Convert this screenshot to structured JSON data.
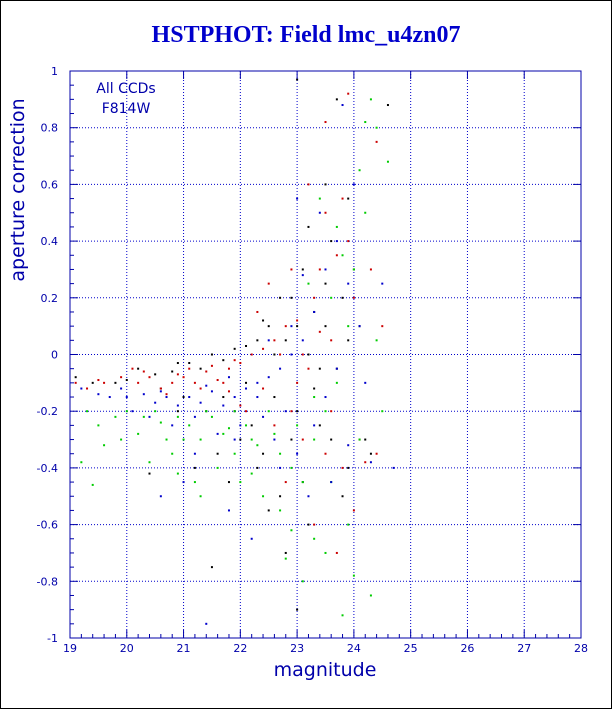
{
  "chart_data": {
    "type": "scatter",
    "title": "HSTPHOT: Field lmc_u4zn07",
    "xlabel": "magnitude",
    "ylabel": "aperture correction",
    "xlim": [
      19,
      28
    ],
    "ylim": [
      -1,
      1
    ],
    "x_ticks": [
      "19",
      "20",
      "21",
      "22",
      "23",
      "24",
      "25",
      "26",
      "27",
      "28"
    ],
    "y_ticks": [
      "-1",
      "-0.8",
      "-0.6",
      "-0.4",
      "-0.2",
      "0",
      "0.2",
      "0.4",
      "0.6",
      "0.8",
      "1"
    ],
    "grid": true,
    "annotations": [
      "All CCDs",
      "F814W"
    ],
    "colors": {
      "axis": "#0000aa",
      "grid": "#0000cc",
      "title": "#0000cc",
      "series": [
        "#000000",
        "#cc0000",
        "#00cc00",
        "#0000cc"
      ]
    },
    "series": [
      {
        "color": "#000000",
        "points": [
          [
            19.1,
            -0.08
          ],
          [
            19.4,
            -0.1
          ],
          [
            19.8,
            -0.1
          ],
          [
            20.2,
            -0.05
          ],
          [
            20.5,
            -0.07
          ],
          [
            20.8,
            -0.06
          ],
          [
            20.9,
            -0.03
          ],
          [
            21.1,
            -0.03
          ],
          [
            21.3,
            -0.05
          ],
          [
            21.5,
            0.0
          ],
          [
            21.7,
            -0.02
          ],
          [
            21.9,
            0.02
          ],
          [
            22.1,
            0.03
          ],
          [
            22.3,
            0.05
          ],
          [
            22.5,
            0.1
          ],
          [
            22.6,
            0.0
          ],
          [
            22.8,
            0.05
          ],
          [
            22.9,
            0.2
          ],
          [
            23.0,
            0.1
          ],
          [
            23.1,
            0.3
          ],
          [
            23.2,
            0.0
          ],
          [
            23.3,
            0.15
          ],
          [
            23.4,
            -0.05
          ],
          [
            23.5,
            0.25
          ],
          [
            23.6,
            0.4
          ],
          [
            23.7,
            0.9
          ],
          [
            23.8,
            0.2
          ],
          [
            23.9,
            0.05
          ],
          [
            24.0,
            0.3
          ],
          [
            23.0,
            0.97
          ],
          [
            23.5,
            0.6
          ],
          [
            22.9,
            -0.3
          ],
          [
            23.1,
            -0.45
          ],
          [
            22.7,
            -0.5
          ],
          [
            23.2,
            -0.6
          ],
          [
            22.4,
            -0.35
          ],
          [
            21.8,
            -0.45
          ],
          [
            21.5,
            -0.75
          ],
          [
            23.0,
            -0.9
          ],
          [
            22.8,
            -0.7
          ],
          [
            23.4,
            -0.25
          ],
          [
            23.6,
            -0.3
          ],
          [
            23.9,
            -0.4
          ],
          [
            24.2,
            -0.3
          ],
          [
            24.6,
            0.88
          ],
          [
            22.2,
            -0.25
          ],
          [
            21.0,
            -0.15
          ],
          [
            20.6,
            -0.12
          ],
          [
            20.0,
            -0.09
          ],
          [
            21.2,
            -0.4
          ],
          [
            22.6,
            -0.15
          ],
          [
            23.3,
            -0.12
          ],
          [
            22.0,
            -0.3
          ],
          [
            21.9,
            -0.2
          ],
          [
            22.5,
            -0.55
          ],
          [
            23.7,
            -0.05
          ],
          [
            24.1,
            0.1
          ],
          [
            22.1,
            -0.1
          ],
          [
            20.4,
            -0.42
          ],
          [
            21.4,
            -0.2
          ],
          [
            23.8,
            -0.5
          ],
          [
            22.3,
            -0.4
          ],
          [
            21.6,
            -0.35
          ],
          [
            23.5,
            0.1
          ],
          [
            23.2,
            0.45
          ],
          [
            24.3,
            -0.35
          ],
          [
            22.7,
            0.2
          ],
          [
            22.4,
            0.12
          ],
          [
            20.9,
            -0.2
          ],
          [
            21.7,
            -0.15
          ],
          [
            23.9,
            0.55
          ],
          [
            23.0,
            -0.2
          ]
        ]
      },
      {
        "color": "#cc0000",
        "points": [
          [
            19.1,
            -0.1
          ],
          [
            19.3,
            -0.12
          ],
          [
            19.6,
            -0.1
          ],
          [
            19.9,
            -0.08
          ],
          [
            20.2,
            -0.1
          ],
          [
            20.4,
            -0.08
          ],
          [
            20.6,
            -0.12
          ],
          [
            20.8,
            -0.1
          ],
          [
            21.0,
            -0.08
          ],
          [
            21.2,
            -0.1
          ],
          [
            21.4,
            -0.06
          ],
          [
            21.6,
            -0.09
          ],
          [
            21.8,
            -0.05
          ],
          [
            22.0,
            -0.03
          ],
          [
            22.2,
            0.0
          ],
          [
            22.4,
            0.02
          ],
          [
            22.6,
            0.05
          ],
          [
            22.8,
            0.1
          ],
          [
            23.0,
            0.12
          ],
          [
            23.1,
            0.0
          ],
          [
            23.2,
            -0.05
          ],
          [
            23.3,
            0.2
          ],
          [
            23.4,
            0.3
          ],
          [
            23.5,
            0.5
          ],
          [
            23.6,
            0.05
          ],
          [
            23.7,
            0.35
          ],
          [
            23.8,
            0.55
          ],
          [
            23.9,
            0.4
          ],
          [
            24.0,
            0.2
          ],
          [
            24.1,
            -0.3
          ],
          [
            24.3,
            0.3
          ],
          [
            24.4,
            0.75
          ],
          [
            23.9,
            0.92
          ],
          [
            23.5,
            0.82
          ],
          [
            22.9,
            0.3
          ],
          [
            22.5,
            0.25
          ],
          [
            22.3,
            0.15
          ],
          [
            21.9,
            -0.02
          ],
          [
            21.5,
            -0.04
          ],
          [
            20.9,
            -0.07
          ],
          [
            20.3,
            -0.06
          ],
          [
            19.5,
            -0.09
          ],
          [
            22.1,
            -0.2
          ],
          [
            22.6,
            -0.25
          ],
          [
            23.1,
            -0.3
          ],
          [
            23.5,
            -0.35
          ],
          [
            23.8,
            -0.4
          ],
          [
            24.4,
            -0.35
          ],
          [
            22.8,
            -0.45
          ],
          [
            23.3,
            -0.6
          ],
          [
            24.0,
            -0.55
          ],
          [
            21.7,
            -0.1
          ],
          [
            21.3,
            -0.12
          ],
          [
            20.7,
            -0.14
          ],
          [
            23.0,
            -0.1
          ],
          [
            23.6,
            -0.2
          ],
          [
            22.4,
            -0.12
          ],
          [
            22.0,
            -0.18
          ],
          [
            23.2,
            0.6
          ],
          [
            24.2,
            -0.38
          ],
          [
            23.7,
            -0.7
          ],
          [
            22.9,
            -0.2
          ],
          [
            21.1,
            -0.05
          ],
          [
            20.1,
            -0.05
          ],
          [
            23.4,
            0.08
          ],
          [
            24.5,
            0.1
          ],
          [
            22.7,
            0.0
          ],
          [
            21.8,
            -0.13
          ]
        ]
      },
      {
        "color": "#00cc00",
        "points": [
          [
            19.3,
            -0.2
          ],
          [
            19.5,
            -0.25
          ],
          [
            19.8,
            -0.22
          ],
          [
            20.0,
            -0.2
          ],
          [
            20.2,
            -0.28
          ],
          [
            20.5,
            -0.2
          ],
          [
            20.7,
            -0.3
          ],
          [
            20.9,
            -0.22
          ],
          [
            21.1,
            -0.25
          ],
          [
            21.3,
            -0.3
          ],
          [
            21.5,
            -0.22
          ],
          [
            21.7,
            -0.28
          ],
          [
            21.9,
            -0.2
          ],
          [
            22.1,
            -0.25
          ],
          [
            22.3,
            -0.32
          ],
          [
            22.5,
            -0.2
          ],
          [
            22.7,
            -0.35
          ],
          [
            22.9,
            -0.4
          ],
          [
            23.1,
            -0.45
          ],
          [
            23.3,
            -0.3
          ],
          [
            23.5,
            -0.2
          ],
          [
            23.7,
            -0.1
          ],
          [
            23.9,
            0.1
          ],
          [
            24.0,
            0.3
          ],
          [
            24.2,
            0.5
          ],
          [
            24.4,
            0.8
          ],
          [
            24.6,
            0.68
          ],
          [
            24.3,
            0.9
          ],
          [
            23.8,
            0.35
          ],
          [
            23.6,
            0.2
          ],
          [
            23.4,
            0.55
          ],
          [
            23.2,
            0.25
          ],
          [
            24.1,
            0.65
          ],
          [
            23.9,
            -0.6
          ],
          [
            23.5,
            -0.7
          ],
          [
            23.1,
            -0.8
          ],
          [
            22.9,
            -0.62
          ],
          [
            22.7,
            -0.55
          ],
          [
            22.4,
            -0.5
          ],
          [
            22.0,
            -0.45
          ],
          [
            21.6,
            -0.4
          ],
          [
            21.2,
            -0.45
          ],
          [
            20.8,
            -0.35
          ],
          [
            20.4,
            -0.38
          ],
          [
            19.9,
            -0.3
          ],
          [
            19.6,
            -0.32
          ],
          [
            19.2,
            -0.38
          ],
          [
            24.3,
            -0.85
          ],
          [
            24.0,
            -0.78
          ],
          [
            23.8,
            -0.92
          ],
          [
            23.3,
            -0.65
          ],
          [
            22.8,
            -0.72
          ],
          [
            22.2,
            -0.3
          ],
          [
            21.8,
            -0.26
          ],
          [
            21.4,
            -0.2
          ],
          [
            21.0,
            -0.3
          ],
          [
            20.6,
            -0.24
          ],
          [
            20.3,
            -0.22
          ],
          [
            24.5,
            -0.2
          ],
          [
            24.4,
            0.05
          ],
          [
            23.7,
            0.45
          ],
          [
            24.2,
            0.82
          ],
          [
            23.3,
            -0.15
          ],
          [
            22.6,
            -0.28
          ],
          [
            22.2,
            -0.42
          ],
          [
            21.9,
            -0.35
          ],
          [
            21.3,
            -0.5
          ],
          [
            20.9,
            -0.42
          ],
          [
            23.0,
            -0.25
          ],
          [
            23.6,
            -0.45
          ],
          [
            24.1,
            -0.3
          ],
          [
            19.4,
            -0.46
          ]
        ]
      },
      {
        "color": "#0000cc",
        "points": [
          [
            19.2,
            -0.12
          ],
          [
            19.5,
            -0.14
          ],
          [
            19.7,
            -0.15
          ],
          [
            20.0,
            -0.15
          ],
          [
            20.3,
            -0.14
          ],
          [
            20.5,
            -0.17
          ],
          [
            20.7,
            -0.15
          ],
          [
            20.9,
            -0.18
          ],
          [
            21.1,
            -0.15
          ],
          [
            21.3,
            -0.17
          ],
          [
            21.5,
            -0.13
          ],
          [
            21.7,
            -0.18
          ],
          [
            21.9,
            -0.15
          ],
          [
            22.1,
            -0.12
          ],
          [
            22.3,
            -0.1
          ],
          [
            22.5,
            -0.08
          ],
          [
            22.7,
            -0.05
          ],
          [
            22.9,
            0.0
          ],
          [
            23.1,
            0.05
          ],
          [
            23.3,
            0.15
          ],
          [
            23.5,
            0.3
          ],
          [
            23.7,
            0.4
          ],
          [
            23.9,
            0.25
          ],
          [
            24.1,
            0.1
          ],
          [
            23.8,
            0.88
          ],
          [
            24.0,
            0.6
          ],
          [
            23.4,
            0.5
          ],
          [
            22.8,
            -0.2
          ],
          [
            22.6,
            -0.3
          ],
          [
            22.4,
            -0.22
          ],
          [
            22.0,
            -0.25
          ],
          [
            21.6,
            -0.28
          ],
          [
            21.2,
            -0.22
          ],
          [
            20.8,
            -0.25
          ],
          [
            20.4,
            -0.22
          ],
          [
            20.1,
            -0.2
          ],
          [
            23.0,
            -0.35
          ],
          [
            23.2,
            -0.5
          ],
          [
            23.6,
            -0.45
          ],
          [
            23.9,
            -0.32
          ],
          [
            24.3,
            -0.38
          ],
          [
            24.7,
            -0.4
          ],
          [
            21.0,
            -0.45
          ],
          [
            20.6,
            -0.5
          ],
          [
            21.8,
            -0.55
          ],
          [
            22.2,
            -0.65
          ],
          [
            21.4,
            -0.95
          ],
          [
            23.5,
            -0.15
          ],
          [
            22.9,
            0.1
          ],
          [
            23.1,
            0.28
          ],
          [
            22.5,
            0.05
          ],
          [
            21.8,
            -0.08
          ],
          [
            21.4,
            -0.11
          ],
          [
            20.6,
            -0.13
          ],
          [
            19.9,
            -0.12
          ],
          [
            24.2,
            -0.1
          ],
          [
            23.7,
            -0.05
          ],
          [
            22.3,
            -0.15
          ],
          [
            21.9,
            -0.3
          ],
          [
            21.2,
            -0.35
          ],
          [
            23.3,
            -0.25
          ],
          [
            24.5,
            0.25
          ],
          [
            23.0,
            0.55
          ],
          [
            22.7,
            -0.4
          ]
        ]
      }
    ]
  }
}
